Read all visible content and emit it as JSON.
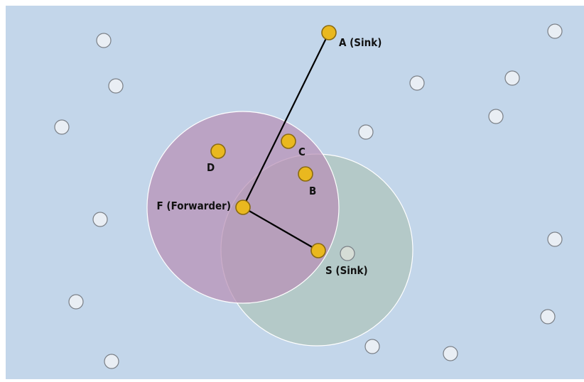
{
  "colors": {
    "background": "#c3d6ea",
    "node_fill": "#e9eef4",
    "node_stroke": "#7a7f86",
    "active_node_fill": "#e9b81f",
    "active_node_stroke": "#8a6a10",
    "range_f": "#b98fb6",
    "range_s": "#b3c8c6",
    "link": "#000000"
  },
  "labels": {
    "a": "A (Sink)",
    "c": "C",
    "d": "D",
    "b": "B",
    "f": "F (Forwarder)",
    "s": "S (Sink)"
  }
}
